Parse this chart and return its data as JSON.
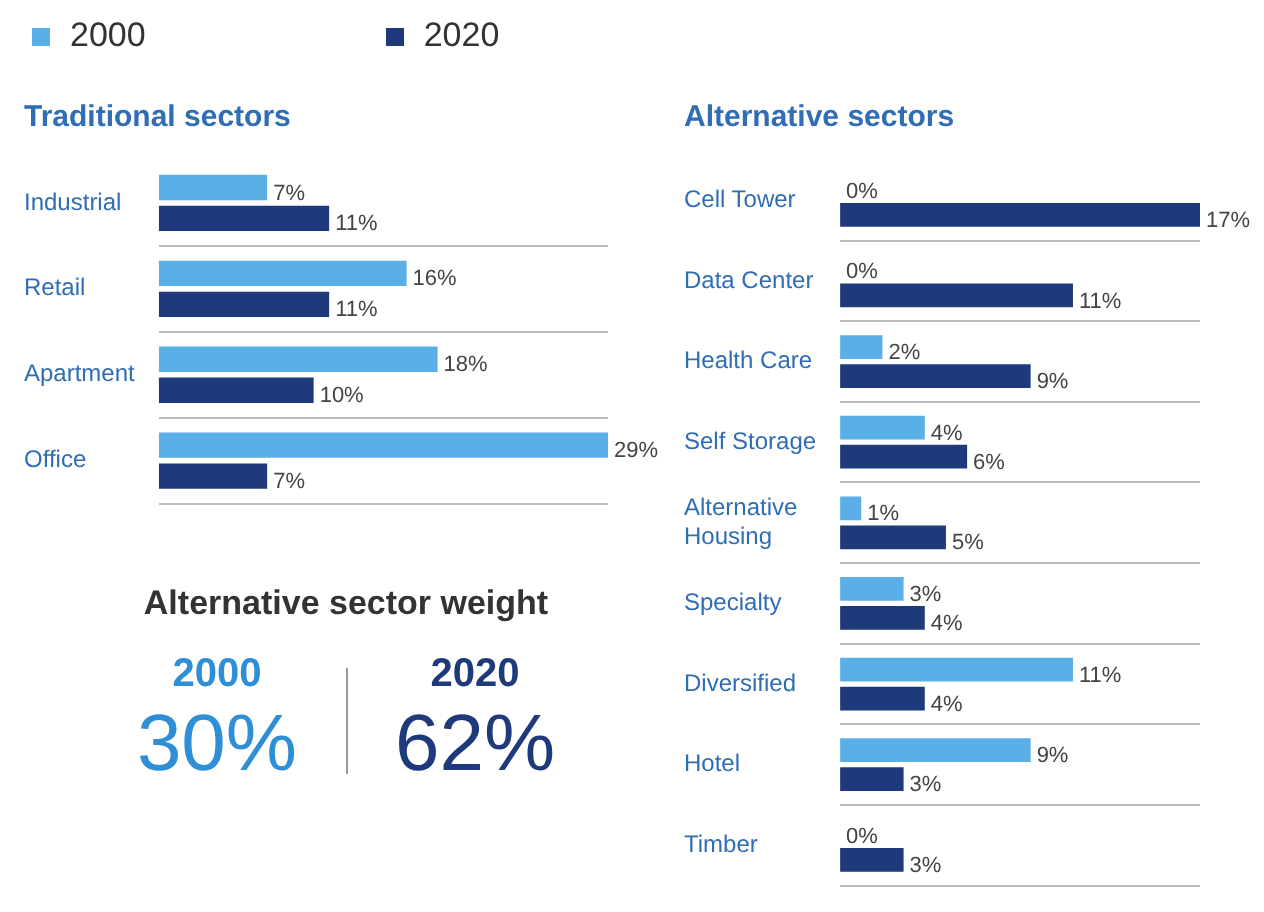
{
  "chart_data": [
    {
      "type": "bar",
      "orientation": "horizontal",
      "title": "Traditional sectors",
      "categories": [
        "Industrial",
        "Retail",
        "Apartment",
        "Office"
      ],
      "legend": "top",
      "grid": "y",
      "series": [
        {
          "name": "2000",
          "color": "#5aafe6",
          "values": [
            7,
            16,
            18,
            29
          ],
          "value_labels": [
            "7%",
            "16%",
            "18%",
            "29%"
          ]
        },
        {
          "name": "2020",
          "color": "#1f3a7a",
          "values": [
            11,
            11,
            10,
            7
          ],
          "value_labels": [
            "11%",
            "11%",
            "10%",
            "7%"
          ]
        }
      ]
    },
    {
      "type": "bar",
      "orientation": "horizontal",
      "title": "Alternative sectors",
      "categories": [
        "Cell Tower",
        "Data Center",
        "Health Care",
        "Self Storage",
        "Alternative Housing",
        "Specialty",
        "Diversified",
        "Hotel",
        "Timber"
      ],
      "grid": "y",
      "series": [
        {
          "color": "#5aafe6",
          "values": [
            0,
            0,
            2,
            4,
            1,
            3,
            11,
            9,
            0
          ],
          "value_labels": [
            "0%",
            "0%",
            "2%",
            "4%",
            "1%",
            "3%",
            "11%",
            "9%",
            "0%"
          ]
        },
        {
          "color": "#1f3a7a",
          "values": [
            17,
            11,
            9,
            6,
            5,
            4,
            4,
            3,
            3
          ],
          "value_labels": [
            "17%",
            "11%",
            "9%",
            "6%",
            "5%",
            "4%",
            "4%",
            "3%",
            "3%"
          ]
        }
      ]
    },
    {
      "type": "other",
      "title": "Alternative sector weight",
      "categories": [
        "2000",
        "2020"
      ],
      "value_labels": [
        "30%",
        "62%"
      ],
      "colors": [
        "#2f8fd6",
        "#1f3a7a"
      ]
    }
  ]
}
